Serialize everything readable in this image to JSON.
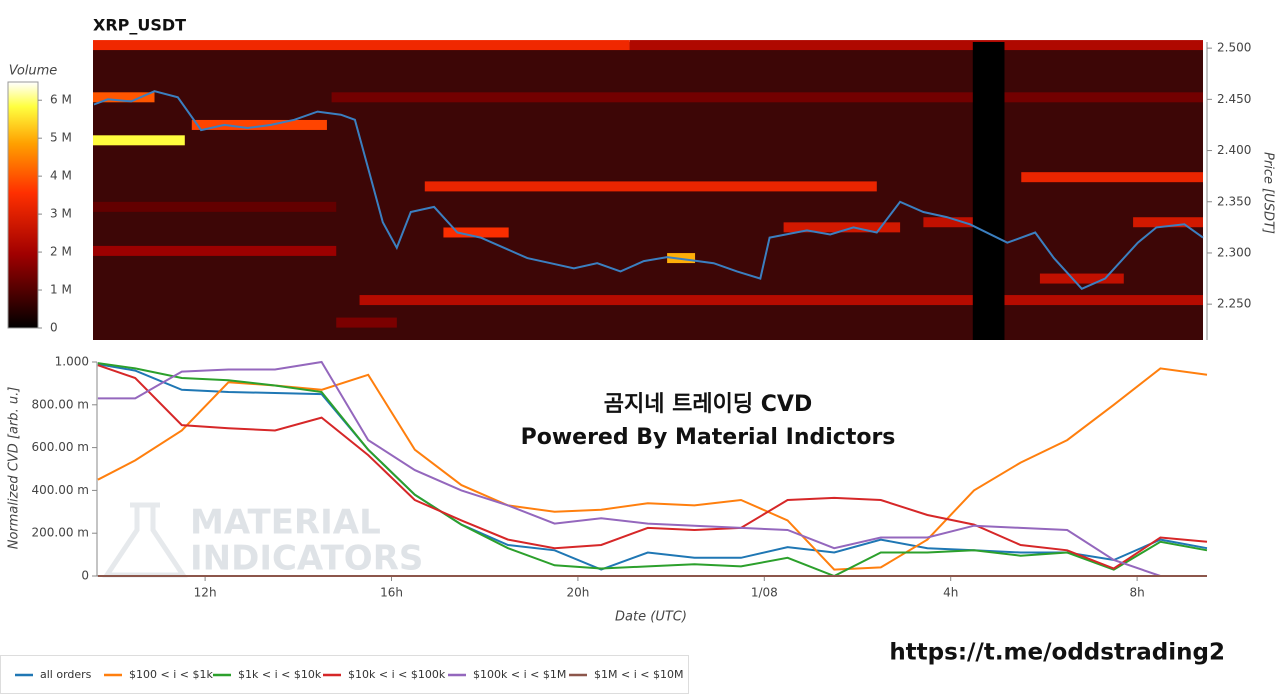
{
  "chart_data": [
    {
      "type": "heatmap",
      "title": "XRP_USDT",
      "y_label": "Price [USDT]",
      "colorbar_label": "Volume",
      "xlim": [
        9.68,
        33.5
      ],
      "ylim": [
        2.215,
        2.506
      ],
      "yticks": [
        {
          "value": 2.25,
          "label": "2.250"
        },
        {
          "value": 2.3,
          "label": "2.300"
        },
        {
          "value": 2.35,
          "label": "2.350"
        },
        {
          "value": 2.4,
          "label": "2.400"
        },
        {
          "value": 2.45,
          "label": "2.450"
        },
        {
          "value": 2.5,
          "label": "2.500"
        }
      ],
      "clim": [
        0,
        6480000
      ],
      "cticks": [
        0,
        {
          "value": 1000000,
          "label": "1 M"
        },
        {
          "value": 2000000,
          "label": "2 M"
        },
        {
          "value": 3000000,
          "label": "3 M"
        },
        {
          "value": 4000000,
          "label": "4 M"
        },
        {
          "value": 5000000,
          "label": "5 M"
        },
        {
          "value": 6000000,
          "label": "6 M"
        }
      ],
      "bands": [
        {
          "start": 9.68,
          "end": 21.2,
          "price": 2.503,
          "volume": 3300000
        },
        {
          "start": 21.2,
          "end": 33.5,
          "price": 2.503,
          "volume": 2200000
        },
        {
          "start": 14.8,
          "end": 33.5,
          "price": 2.452,
          "volume": 1400000
        },
        {
          "start": 9.68,
          "end": 11.65,
          "price": 2.41,
          "volume": 5800000
        },
        {
          "start": 16.8,
          "end": 26.5,
          "price": 2.365,
          "volume": 3200000
        },
        {
          "start": 29.6,
          "end": 33.5,
          "price": 2.374,
          "volume": 3200000
        },
        {
          "start": 9.68,
          "end": 14.9,
          "price": 2.345,
          "volume": 1200000
        },
        {
          "start": 9.68,
          "end": 14.9,
          "price": 2.302,
          "volume": 1900000
        },
        {
          "start": 15.4,
          "end": 33.5,
          "price": 2.254,
          "volume": 2300000
        },
        {
          "start": 14.9,
          "end": 16.2,
          "price": 2.232,
          "volume": 1500000
        },
        {
          "start": 9.68,
          "end": 11.0,
          "price": 2.452,
          "volume": 4000000
        },
        {
          "start": 11.8,
          "end": 14.7,
          "price": 2.425,
          "volume": 3800000
        },
        {
          "start": 17.2,
          "end": 18.6,
          "price": 2.32,
          "volume": 3500000
        },
        {
          "start": 22.0,
          "end": 22.6,
          "price": 2.295,
          "volume": 5000000
        },
        {
          "start": 24.5,
          "end": 27.0,
          "price": 2.325,
          "volume": 2800000
        },
        {
          "start": 27.5,
          "end": 29.0,
          "price": 2.33,
          "volume": 2500000
        },
        {
          "start": 32.0,
          "end": 33.5,
          "price": 2.33,
          "volume": 2800000
        },
        {
          "start": 30.0,
          "end": 31.8,
          "price": 2.275,
          "volume": 2500000
        }
      ],
      "gap": [
        28.56,
        29.24
      ],
      "price": {
        "color": "#3b7fc0",
        "x": [
          9.7,
          10.0,
          10.5,
          11.0,
          11.5,
          12.0,
          12.5,
          13.0,
          13.5,
          14.0,
          14.5,
          15.0,
          15.3,
          15.6,
          15.9,
          16.2,
          16.5,
          17.0,
          17.5,
          18.0,
          18.5,
          19.0,
          19.5,
          20.0,
          20.5,
          21.0,
          21.5,
          22.0,
          22.5,
          23.0,
          23.5,
          24.0,
          24.2,
          25.0,
          25.5,
          26.0,
          26.5,
          27.0,
          27.5,
          28.0,
          28.5,
          29.3,
          29.9,
          30.3,
          30.9,
          31.4,
          32.1,
          32.5,
          33.1,
          33.5
        ],
        "values": [
          2.445,
          2.45,
          2.448,
          2.458,
          2.452,
          2.42,
          2.425,
          2.422,
          2.425,
          2.43,
          2.438,
          2.435,
          2.43,
          2.38,
          2.33,
          2.305,
          2.34,
          2.345,
          2.32,
          2.315,
          2.305,
          2.295,
          2.29,
          2.285,
          2.29,
          2.282,
          2.292,
          2.296,
          2.293,
          2.29,
          2.282,
          2.275,
          2.315,
          2.322,
          2.318,
          2.325,
          2.32,
          2.35,
          2.34,
          2.335,
          2.328,
          2.31,
          2.32,
          2.295,
          2.265,
          2.275,
          2.31,
          2.325,
          2.328,
          2.315
        ]
      }
    },
    {
      "type": "line",
      "x_label": "Date (UTC)",
      "y_label": "Normalized CVD [arb. u.]",
      "xlim": [
        9.68,
        33.5
      ],
      "ylim": [
        0,
        1
      ],
      "xticks": [
        {
          "value": 12,
          "label": "12h"
        },
        {
          "value": 16,
          "label": "16h"
        },
        {
          "value": 20,
          "label": "20h"
        },
        {
          "value": 24,
          "label": "1/08"
        },
        {
          "value": 28,
          "label": "4h"
        },
        {
          "value": 32,
          "label": "8h"
        }
      ],
      "yticks": [
        0,
        {
          "value": 0.2,
          "label": "200.00 m"
        },
        {
          "value": 0.4,
          "label": "400.00 m"
        },
        {
          "value": 0.6,
          "label": "600.00 m"
        },
        {
          "value": 0.8,
          "label": "800.00 m"
        },
        {
          "value": 1,
          "label": "1.000"
        }
      ],
      "annotations": [
        "곰지네 트레이딩 CVD",
        "Powered By Material Indictors",
        "https://t.me/oddstrading2"
      ],
      "watermark": [
        "MATERIAL",
        "INDICATORS"
      ],
      "x": [
        9.7,
        10.5,
        11.5,
        12.5,
        13.5,
        14.5,
        15.5,
        16.5,
        17.5,
        18.5,
        19.5,
        20.5,
        21.5,
        22.5,
        23.5,
        24.5,
        25.5,
        26.5,
        27.5,
        28.5,
        29.5,
        30.5,
        31.5,
        32.5,
        33.5
      ],
      "series": [
        {
          "name": "all orders",
          "color": "#1f77b4",
          "values": [
            0.99,
            0.96,
            0.87,
            0.86,
            0.855,
            0.85,
            0.59,
            0.38,
            0.24,
            0.145,
            0.12,
            0.03,
            0.11,
            0.085,
            0.085,
            0.135,
            0.11,
            0.17,
            0.13,
            0.12,
            0.11,
            0.11,
            0.075,
            0.17,
            0.13
          ]
        },
        {
          "name": "$100 < i < $1k",
          "color": "#ff7f0e",
          "values": [
            0.45,
            0.54,
            0.68,
            0.905,
            0.89,
            0.87,
            0.94,
            0.59,
            0.425,
            0.33,
            0.3,
            0.31,
            0.34,
            0.33,
            0.355,
            0.26,
            0.03,
            0.04,
            0.17,
            0.4,
            0.53,
            0.635,
            0.8,
            0.97,
            0.94
          ]
        },
        {
          "name": "$1k < i < $10k",
          "color": "#2ca02c",
          "values": [
            0.995,
            0.97,
            0.925,
            0.915,
            0.89,
            0.86,
            0.59,
            0.38,
            0.24,
            0.13,
            0.05,
            0.035,
            0.045,
            0.055,
            0.045,
            0.085,
            0,
            0.11,
            0.11,
            0.12,
            0.095,
            0.11,
            0.03,
            0.16,
            0.12
          ]
        },
        {
          "name": "$10k < i < $100k",
          "color": "#d62728",
          "values": [
            0.985,
            0.925,
            0.705,
            0.69,
            0.68,
            0.74,
            0.565,
            0.355,
            0.26,
            0.17,
            0.13,
            0.145,
            0.225,
            0.215,
            0.225,
            0.355,
            0.365,
            0.355,
            0.285,
            0.24,
            0.145,
            0.12,
            0.035,
            0.18,
            0.16
          ]
        },
        {
          "name": "$100k < i < $1M",
          "color": "#9467bd",
          "values": [
            0.83,
            0.83,
            0.955,
            0.965,
            0.965,
            1,
            0.635,
            0.495,
            0.4,
            0.33,
            0.245,
            0.27,
            0.245,
            0.235,
            0.225,
            0.215,
            0.13,
            0.18,
            0.18,
            0.235,
            0.225,
            0.215,
            0.075,
            0,
            0
          ]
        },
        {
          "name": "$1M < i < $10M",
          "color": "#8c564b",
          "values": [
            0,
            0,
            0,
            0,
            0,
            0,
            0,
            0,
            0,
            0,
            0,
            0,
            0,
            0,
            0,
            0,
            0,
            0,
            0,
            0,
            0,
            0,
            0,
            0,
            0
          ]
        }
      ]
    }
  ]
}
